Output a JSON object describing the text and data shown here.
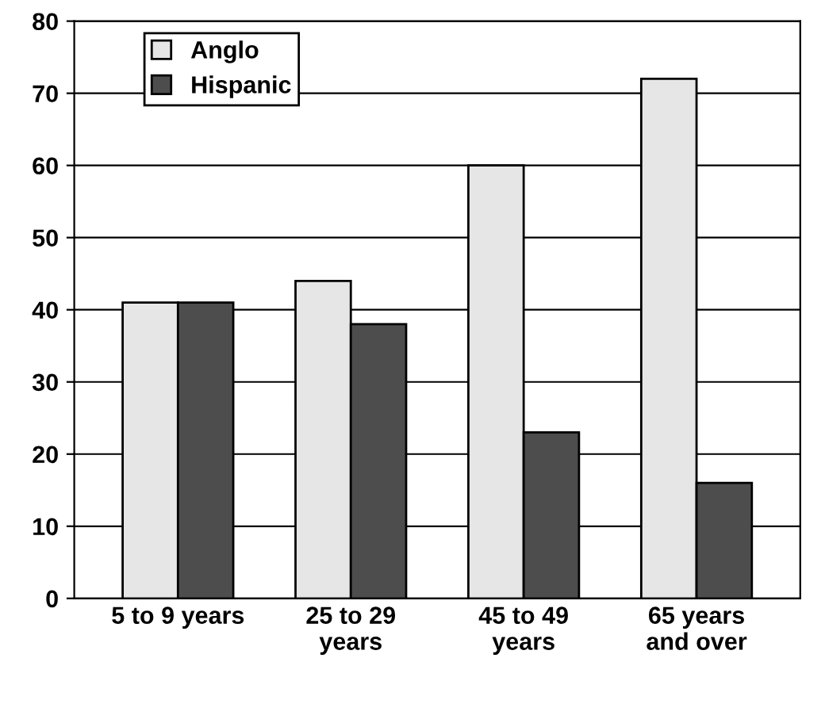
{
  "chart_data": {
    "type": "bar",
    "categories": [
      "5 to 9 years",
      "25 to 29\nyears",
      "45 to 49\nyears",
      "65 years\nand over"
    ],
    "series": [
      {
        "name": "Anglo",
        "color": "#e6e6e6",
        "values": [
          41,
          44,
          60,
          72
        ]
      },
      {
        "name": "Hispanic",
        "color": "#4d4d4d",
        "values": [
          41,
          38,
          23,
          16
        ]
      }
    ],
    "ylim": [
      0,
      80
    ],
    "yticks": [
      0,
      10,
      20,
      30,
      40,
      50,
      60,
      70,
      80
    ],
    "grid": "y",
    "legend": "upper left"
  }
}
